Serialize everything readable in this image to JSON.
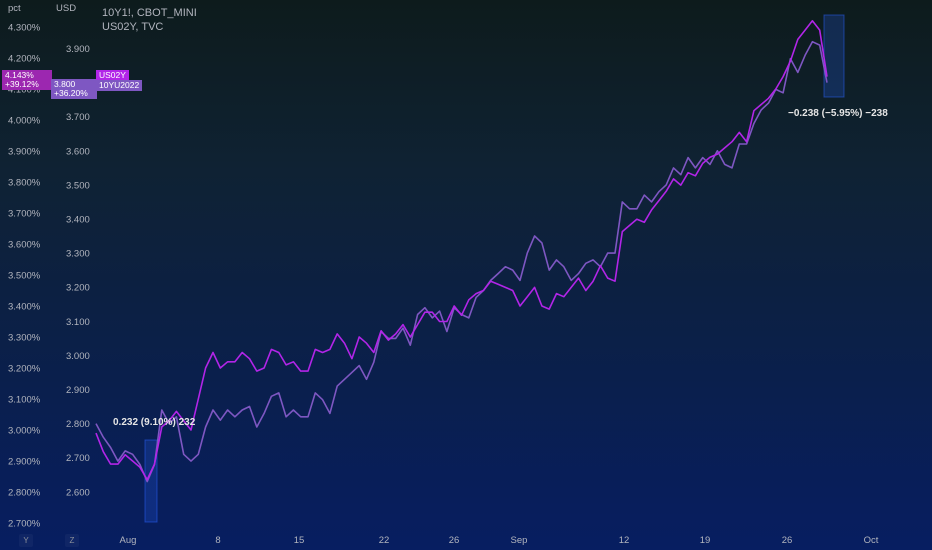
{
  "left_axis": {
    "unit": "pct"
  },
  "mid_axis": {
    "unit": "USD"
  },
  "legend": {
    "line1": "10Y1!, CBOT_MINI",
    "line2": "US02Y, TVC"
  },
  "badges": {
    "left_value": "4.143%",
    "left_change": "+39.12%",
    "mid_value": "3.800",
    "mid_change": "+36.20%",
    "us02y_label": "US02Y",
    "contract_label": "10YU2022"
  },
  "measurements": {
    "start": "0.232 (9.10%) 232",
    "end": "−0.238 (−5.95%) −238"
  },
  "corner_buttons": {
    "y": "Y",
    "z": "Z"
  },
  "colors": {
    "series_10y": "#7e57c2",
    "series_us02y": "#b225e8",
    "mid_badge": "#7e57c2",
    "left_badge": "#9c27b0",
    "measure_box": "#2962ff"
  },
  "chart_data": {
    "type": "line",
    "x_ticks": [
      "Aug",
      "8",
      "15",
      "22",
      "26",
      "Sep",
      "12",
      "19",
      "26",
      "Oct"
    ],
    "y_left": {
      "label": "pct",
      "min": 2.7,
      "max": 4.3,
      "ticks": [
        "4.300%",
        "4.200%",
        "4.100%",
        "4.000%",
        "3.900%",
        "3.800%",
        "3.700%",
        "3.600%",
        "3.500%",
        "3.400%",
        "3.300%",
        "3.200%",
        "3.100%",
        "3.000%",
        "2.900%",
        "2.800%",
        "2.700%"
      ]
    },
    "y_mid": {
      "label": "USD",
      "min": 2.6,
      "max": 3.9,
      "ticks": [
        "3.900",
        "3.800",
        "3.700",
        "3.600",
        "3.500",
        "3.400",
        "3.300",
        "3.200",
        "3.100",
        "3.000",
        "2.900",
        "2.800",
        "2.700",
        "2.600"
      ]
    },
    "series": [
      {
        "name": "10Y1!, CBOT_MINI",
        "axis": "mid",
        "x": [
          0,
          1,
          2,
          3,
          4,
          5,
          6,
          7,
          8,
          9,
          10,
          11,
          12,
          13,
          14,
          15,
          16,
          17,
          18,
          19,
          20,
          21,
          22,
          23,
          24,
          25,
          26,
          27,
          28,
          29,
          30,
          31,
          32,
          33,
          34,
          35,
          36,
          37,
          38,
          39,
          40,
          41,
          42,
          43,
          44,
          45,
          46,
          47,
          48,
          49,
          50,
          51,
          52,
          53,
          54,
          55,
          56,
          57,
          58,
          59,
          60,
          61,
          62,
          63,
          64,
          65,
          66,
          67,
          68,
          69,
          70,
          71,
          72,
          73,
          74,
          75,
          76,
          77,
          78,
          79,
          80,
          81,
          82,
          83,
          84,
          85,
          86,
          87,
          88,
          89,
          90,
          91,
          92,
          93,
          94,
          95,
          96,
          97,
          98,
          99,
          100
        ],
        "values": [
          2.8,
          2.76,
          2.73,
          2.69,
          2.72,
          2.71,
          2.68,
          2.63,
          2.68,
          2.84,
          2.8,
          2.82,
          2.71,
          2.69,
          2.71,
          2.79,
          2.84,
          2.81,
          2.84,
          2.82,
          2.84,
          2.85,
          2.79,
          2.83,
          2.88,
          2.89,
          2.82,
          2.84,
          2.82,
          2.82,
          2.89,
          2.87,
          2.83,
          2.91,
          2.93,
          2.95,
          2.97,
          2.93,
          2.98,
          3.07,
          3.05,
          3.05,
          3.08,
          3.03,
          3.12,
          3.14,
          3.11,
          3.13,
          3.07,
          3.14,
          3.12,
          3.11,
          3.17,
          3.19,
          3.22,
          3.24,
          3.26,
          3.25,
          3.22,
          3.3,
          3.35,
          3.33,
          3.25,
          3.28,
          3.26,
          3.22,
          3.24,
          3.27,
          3.28,
          3.26,
          3.3,
          3.3,
          3.45,
          3.43,
          3.43,
          3.47,
          3.45,
          3.48,
          3.5,
          3.55,
          3.53,
          3.58,
          3.55,
          3.58,
          3.56,
          3.6,
          3.56,
          3.55,
          3.62,
          3.62,
          3.68,
          3.72,
          3.74,
          3.78,
          3.77,
          3.87,
          3.83,
          3.88,
          3.92,
          3.91,
          3.8
        ]
      },
      {
        "name": "US02Y, TVC",
        "axis": "left",
        "x": [
          0,
          1,
          2,
          3,
          4,
          5,
          6,
          7,
          8,
          9,
          10,
          11,
          12,
          13,
          14,
          15,
          16,
          17,
          18,
          19,
          20,
          21,
          22,
          23,
          24,
          25,
          26,
          27,
          28,
          29,
          30,
          31,
          32,
          33,
          34,
          35,
          36,
          37,
          38,
          39,
          40,
          41,
          42,
          43,
          44,
          45,
          46,
          47,
          48,
          49,
          50,
          51,
          52,
          53,
          54,
          55,
          56,
          57,
          58,
          59,
          60,
          61,
          62,
          63,
          64,
          65,
          66,
          67,
          68,
          69,
          70,
          71,
          72,
          73,
          74,
          75,
          76,
          77,
          78,
          79,
          80,
          81,
          82,
          83,
          84,
          85,
          86,
          87,
          88,
          89,
          90,
          91,
          92,
          93,
          94,
          95,
          96,
          97,
          98,
          99,
          100
        ],
        "values": [
          2.99,
          2.93,
          2.89,
          2.89,
          2.92,
          2.9,
          2.88,
          2.84,
          2.89,
          3.01,
          3.03,
          3.06,
          3.03,
          3.0,
          3.1,
          3.2,
          3.25,
          3.2,
          3.22,
          3.22,
          3.25,
          3.23,
          3.19,
          3.2,
          3.26,
          3.25,
          3.21,
          3.22,
          3.19,
          3.19,
          3.26,
          3.25,
          3.26,
          3.31,
          3.28,
          3.23,
          3.3,
          3.28,
          3.25,
          3.32,
          3.29,
          3.31,
          3.34,
          3.3,
          3.34,
          3.38,
          3.38,
          3.35,
          3.35,
          3.4,
          3.37,
          3.42,
          3.44,
          3.45,
          3.48,
          3.47,
          3.46,
          3.45,
          3.4,
          3.43,
          3.46,
          3.4,
          3.39,
          3.44,
          3.43,
          3.46,
          3.49,
          3.45,
          3.48,
          3.53,
          3.49,
          3.48,
          3.64,
          3.66,
          3.68,
          3.67,
          3.71,
          3.74,
          3.77,
          3.81,
          3.79,
          3.83,
          3.82,
          3.86,
          3.88,
          3.89,
          3.91,
          3.93,
          3.96,
          3.93,
          4.03,
          4.05,
          4.07,
          4.1,
          4.14,
          4.19,
          4.26,
          4.29,
          4.32,
          4.29,
          4.14
        ]
      }
    ],
    "annotations": [
      {
        "text": "0.232 (9.10%) 232"
      },
      {
        "text": "−0.238 (−5.95%) −238"
      }
    ],
    "grid": false,
    "legend_position": "top-left"
  }
}
